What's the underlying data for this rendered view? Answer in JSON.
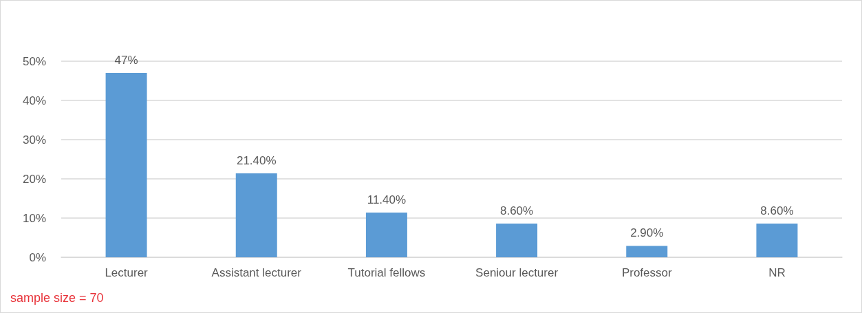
{
  "chart_data": {
    "type": "bar",
    "categories": [
      "Lecturer",
      "Assistant lecturer",
      "Tutorial fellows",
      "Seniour lecturer",
      "Professor",
      "NR"
    ],
    "values": [
      47,
      21.4,
      11.4,
      8.6,
      2.9,
      8.6
    ],
    "value_labels": [
      "47%",
      "21.40%",
      "11.40%",
      "8.60%",
      "2.90%",
      "8.60%"
    ],
    "color": "#5b9bd5",
    "ylim": [
      0,
      50
    ],
    "yticks": [
      {
        "value": 0,
        "label": "0%"
      },
      {
        "value": 10,
        "label": "10%"
      },
      {
        "value": 20,
        "label": "20%"
      },
      {
        "value": 30,
        "label": "30%"
      },
      {
        "value": 40,
        "label": "40%"
      },
      {
        "value": 50,
        "label": "50%"
      }
    ],
    "grid": "y",
    "annotations": [
      "sample size = 70"
    ]
  }
}
